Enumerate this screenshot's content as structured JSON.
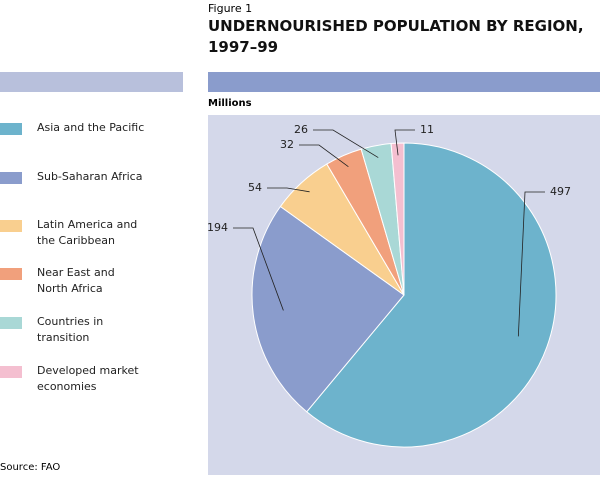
{
  "chart_data": {
    "type": "pie",
    "figure_label": "Figure 1",
    "title": "UNDERNOURISHED POPULATION BY REGION, 1997–99",
    "unit_label": "Millions",
    "source": "Source:  FAO",
    "categories": [
      "Asia and the Pacific",
      "Sub-Saharan Africa",
      "Latin America and the Caribbean",
      "Near East and North Africa",
      "Countries in transition",
      "Developed market economies"
    ],
    "values": [
      497,
      194,
      54,
      32,
      26,
      11
    ],
    "colors": [
      "#6db3cc",
      "#8a9ccc",
      "#f9cf8f",
      "#f1a07c",
      "#a9d8d6",
      "#f4bfd0"
    ]
  }
}
